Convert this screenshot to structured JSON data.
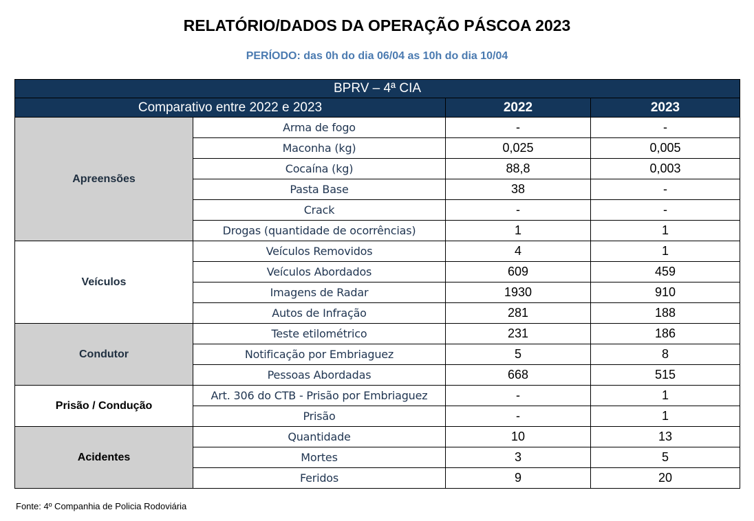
{
  "title": "RELATÓRIO/DADOS DA OPERAÇÃO PÁSCOA 2023",
  "subtitle": "PERÍODO: das 0h do dia 06/04 as 10h do dia 10/04",
  "table": {
    "unit": "BPRV – 4ª CIA",
    "comparison_label": "Comparativo entre 2022 e 2023",
    "year_a": "2022",
    "year_b": "2023",
    "groups": [
      {
        "category": "Apreensões",
        "rows": [
          {
            "item": "Arma de fogo",
            "v2022": "-",
            "v2023": "-"
          },
          {
            "item": "Maconha (kg)",
            "v2022": "0,025",
            "v2023": "0,005"
          },
          {
            "item": "Cocaína (kg)",
            "v2022": "88,8",
            "v2023": "0,003"
          },
          {
            "item": "Pasta Base",
            "v2022": "38",
            "v2023": "-"
          },
          {
            "item": "Crack",
            "v2022": "-",
            "v2023": "-"
          },
          {
            "item": "Drogas (quantidade de ocorrências)",
            "v2022": "1",
            "v2023": "1"
          }
        ]
      },
      {
        "category": "Veículos",
        "rows": [
          {
            "item": "Veículos Removidos",
            "v2022": "4",
            "v2023": "1"
          },
          {
            "item": "Veículos Abordados",
            "v2022": "609",
            "v2023": "459"
          },
          {
            "item": "Imagens de Radar",
            "v2022": "1930",
            "v2023": "910"
          },
          {
            "item": "Autos de Infração",
            "v2022": "281",
            "v2023": "188"
          }
        ]
      },
      {
        "category": "Condutor",
        "rows": [
          {
            "item": "Teste etilométrico",
            "v2022": "231",
            "v2023": "186"
          },
          {
            "item": "Notificação por Embriaguez",
            "v2022": "5",
            "v2023": "8"
          },
          {
            "item": "Pessoas Abordadas",
            "v2022": "668",
            "v2023": "515"
          }
        ]
      },
      {
        "category": "Prisão / Condução",
        "rows": [
          {
            "item": "Art. 306 do CTB - Prisão  por Embriaguez",
            "v2022": "-",
            "v2023": "1"
          },
          {
            "item": "Prisão",
            "v2022": "-",
            "v2023": "1"
          }
        ]
      },
      {
        "category": "Acidentes",
        "rows": [
          {
            "item": "Quantidade",
            "v2022": "10",
            "v2023": "13"
          },
          {
            "item": "Mortes",
            "v2022": "3",
            "v2023": "5"
          },
          {
            "item": "Feridos",
            "v2022": "9",
            "v2023": "20"
          }
        ]
      }
    ]
  },
  "footer": "Fonte: 4º Companhia de Policia Rodoviária",
  "colors": {
    "header_bg": "#14365a",
    "subtitle": "#4a7ab0",
    "category_gray": "#d0d0d0"
  }
}
